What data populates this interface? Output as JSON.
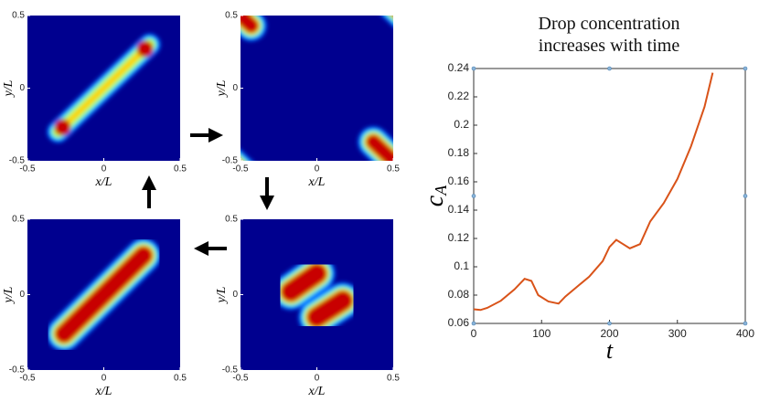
{
  "chart_data": [
    {
      "type": "image",
      "xlabel": "x/L",
      "ylabel": "y/L",
      "xlim": [
        -0.5,
        0.5
      ],
      "ylim": [
        -0.5,
        0.5
      ],
      "xticks": [
        -0.5,
        0,
        0.5
      ],
      "yticks": [
        -0.5,
        0,
        0.5
      ]
    },
    {
      "type": "image",
      "xlabel": "x/L",
      "ylabel": "y/L",
      "xlim": [
        -0.5,
        0.5
      ],
      "ylim": [
        -0.5,
        0.5
      ],
      "xticks": [
        -0.5,
        0,
        0.5
      ],
      "yticks": [
        -0.5,
        0,
        0.5
      ]
    },
    {
      "type": "image",
      "xlabel": "x/L",
      "ylabel": "y/L",
      "xlim": [
        -0.5,
        0.5
      ],
      "ylim": [
        -0.5,
        0.5
      ],
      "xticks": [
        -0.5,
        0,
        0.5
      ],
      "yticks": [
        -0.5,
        0,
        0.5
      ]
    },
    {
      "type": "image",
      "xlabel": "x/L",
      "ylabel": "y/L",
      "xlim": [
        -0.5,
        0.5
      ],
      "ylim": [
        -0.5,
        0.5
      ],
      "xticks": [
        -0.5,
        0,
        0.5
      ],
      "yticks": [
        -0.5,
        0,
        0.5
      ]
    },
    {
      "type": "line",
      "title": "Drop concentration increases with time",
      "xlabel": "t",
      "ylabel": "c",
      "ylabel_subscript": "A",
      "xlim": [
        0,
        400
      ],
      "ylim": [
        0.06,
        0.24
      ],
      "xticks": [
        0,
        100,
        200,
        300,
        400
      ],
      "yticks": [
        0.06,
        0.08,
        0.1,
        0.12,
        0.14,
        0.16,
        0.18,
        0.2,
        0.22,
        0.24
      ],
      "x": [
        0,
        10,
        20,
        40,
        60,
        75,
        85,
        95,
        110,
        125,
        135,
        150,
        170,
        190,
        200,
        210,
        220,
        230,
        245,
        260,
        280,
        300,
        320,
        340,
        352
      ],
      "series": [
        {
          "color": "#d95319",
          "values": [
            0.07,
            0.0695,
            0.071,
            0.076,
            0.084,
            0.0915,
            0.09,
            0.08,
            0.0755,
            0.074,
            0.079,
            0.085,
            0.093,
            0.104,
            0.114,
            0.119,
            0.116,
            0.113,
            0.116,
            0.132,
            0.145,
            0.162,
            0.185,
            0.213,
            0.237
          ]
        }
      ]
    }
  ]
}
